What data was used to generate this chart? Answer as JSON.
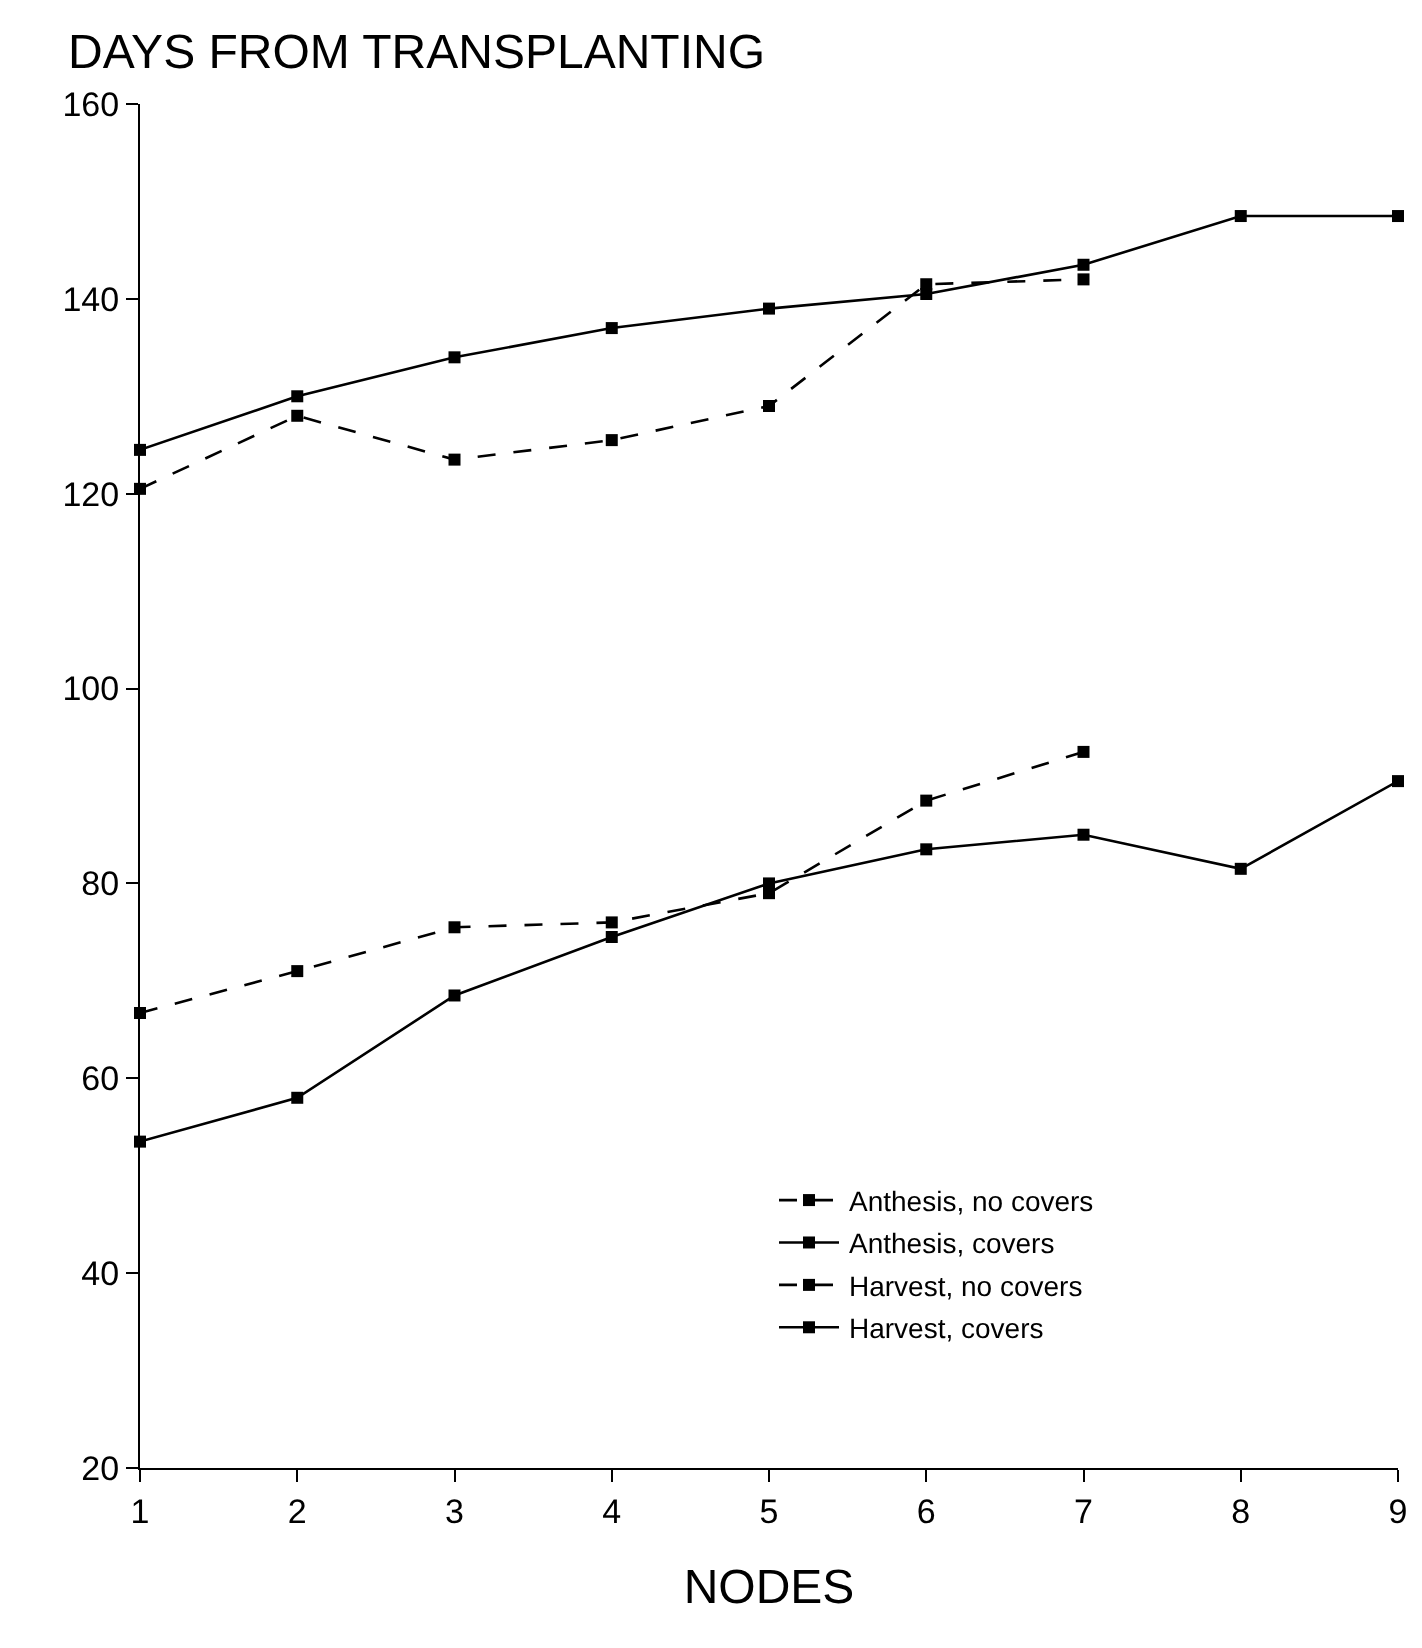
{
  "chart_data": {
    "type": "line",
    "ylabel": "DAYS FROM TRANSPLANTING",
    "xlabel": "NODES",
    "x": [
      1,
      2,
      3,
      4,
      5,
      6,
      7,
      8,
      9
    ],
    "series": [
      {
        "name": "Anthesis, no covers",
        "color": "#000000",
        "line_style": "dashed",
        "marker": "square",
        "values": [
          66.7,
          71,
          75.5,
          76,
          79,
          88.5,
          93.5,
          null,
          null
        ]
      },
      {
        "name": "Anthesis, covers",
        "color": "#000000",
        "line_style": "solid",
        "marker": "square",
        "values": [
          53.5,
          58,
          68.5,
          74.5,
          80,
          83.5,
          85,
          81.5,
          90.5
        ]
      },
      {
        "name": "Harvest, no covers",
        "color": "#000000",
        "line_style": "dashed",
        "marker": "square",
        "values": [
          120.5,
          128,
          123.5,
          125.5,
          129,
          141.5,
          142,
          null,
          null
        ]
      },
      {
        "name": "Harvest, covers",
        "color": "#000000",
        "line_style": "solid",
        "marker": "square",
        "values": [
          124.5,
          130,
          134,
          137,
          139,
          140.5,
          143.5,
          148.5,
          148.5
        ]
      }
    ],
    "xlim": [
      1,
      9
    ],
    "xticks": [
      1,
      2,
      3,
      4,
      5,
      6,
      7,
      8,
      9
    ],
    "ylim": [
      20,
      160
    ],
    "yticks": [
      20,
      40,
      60,
      80,
      100,
      120,
      140,
      160
    ],
    "grid": false,
    "legend": "bottom right"
  }
}
